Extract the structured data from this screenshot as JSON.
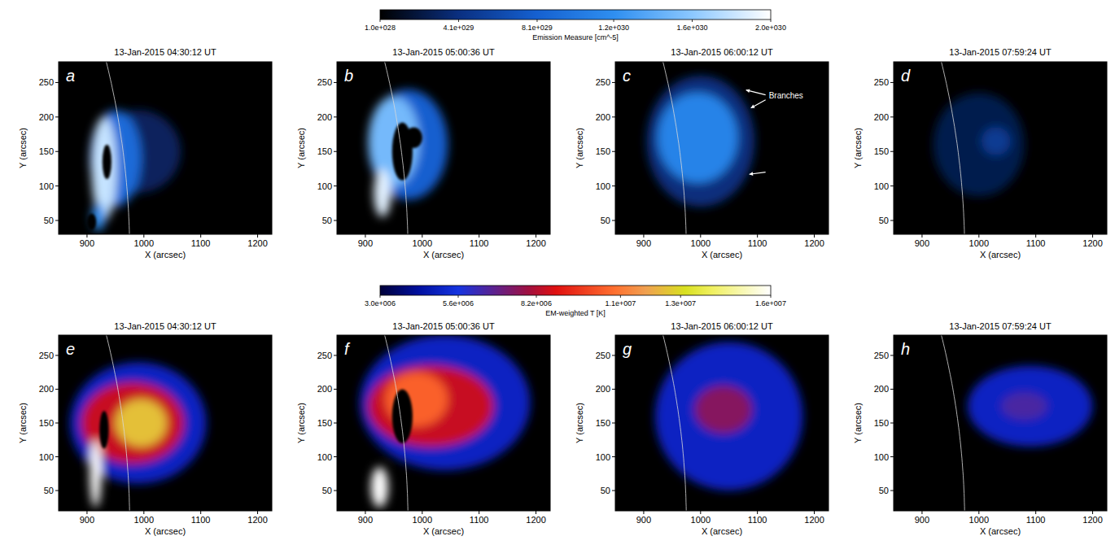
{
  "chart_data": [
    {
      "type": "heatmap",
      "title": "13-Jan-2015 04:30:12 UT",
      "panel": "a",
      "x_label": "X (arcsec)",
      "y_label": "Y (arcsec)",
      "xlim": [
        850,
        1225
      ],
      "ylim": [
        30,
        280
      ],
      "xticks": [
        900,
        1000,
        1100,
        1200
      ],
      "yticks": [
        50,
        100,
        150,
        200,
        250
      ],
      "limb_radius": 975,
      "features": [
        {
          "x": 990,
          "y": 150,
          "rx": 75,
          "ry": 60,
          "value": 300000000000000000000000000000
        },
        {
          "x": 950,
          "y": 140,
          "rx": 45,
          "ry": 70,
          "value": 900000000000000000000000000000
        },
        {
          "x": 930,
          "y": 125,
          "rx": 22,
          "ry": 75,
          "value": 1.8e+30
        },
        {
          "x": 920,
          "y": 55,
          "rx": 12,
          "ry": 20,
          "value": 1.2e+30
        }
      ],
      "masked": [
        {
          "x": 935,
          "y": 135,
          "rx": 8,
          "ry": 25
        },
        {
          "x": 908,
          "y": 48,
          "rx": 8,
          "ry": 12
        }
      ],
      "annotations": []
    },
    {
      "type": "heatmap",
      "title": "13-Jan-2015 05:00:36 UT",
      "panel": "b",
      "x_label": "X (arcsec)",
      "y_label": "Y (arcsec)",
      "xlim": [
        850,
        1225
      ],
      "ylim": [
        30,
        280
      ],
      "xticks": [
        900,
        1000,
        1100,
        1200
      ],
      "yticks": [
        50,
        100,
        150,
        200,
        250
      ],
      "limb_radius": 975,
      "features": [
        {
          "x": 975,
          "y": 160,
          "rx": 70,
          "ry": 80,
          "value": 800000000000000000000000000000
        },
        {
          "x": 950,
          "y": 165,
          "rx": 45,
          "ry": 65,
          "value": 1.5e+30
        },
        {
          "x": 930,
          "y": 90,
          "rx": 15,
          "ry": 35,
          "value": 1.9e+30
        }
      ],
      "masked": [
        {
          "x": 965,
          "y": 150,
          "rx": 18,
          "ry": 42
        },
        {
          "x": 985,
          "y": 170,
          "rx": 15,
          "ry": 15
        }
      ],
      "annotations": []
    },
    {
      "type": "heatmap",
      "title": "13-Jan-2015 06:00:12 UT",
      "panel": "c",
      "x_label": "X (arcsec)",
      "y_label": "Y (arcsec)",
      "xlim": [
        850,
        1225
      ],
      "ylim": [
        30,
        280
      ],
      "xticks": [
        900,
        1000,
        1100,
        1200
      ],
      "yticks": [
        50,
        100,
        150,
        200,
        250
      ],
      "limb_radius": 975,
      "features": [
        {
          "x": 1000,
          "y": 165,
          "rx": 95,
          "ry": 95,
          "value": 400000000000000000000000000000
        },
        {
          "x": 995,
          "y": 170,
          "rx": 70,
          "ry": 65,
          "value": 1.1e+30
        }
      ],
      "masked": [],
      "annotations": [
        {
          "text": "Branches",
          "x": 1120,
          "y": 232
        }
      ]
    },
    {
      "type": "heatmap",
      "title": "13-Jan-2015 07:59:24 UT",
      "panel": "d",
      "x_label": "X (arcsec)",
      "y_label": "Y (arcsec)",
      "xlim": [
        850,
        1225
      ],
      "ylim": [
        30,
        280
      ],
      "xticks": [
        900,
        1000,
        1100,
        1200
      ],
      "yticks": [
        50,
        100,
        150,
        200,
        250
      ],
      "limb_radius": 975,
      "features": [
        {
          "x": 1000,
          "y": 160,
          "rx": 80,
          "ry": 75,
          "value": 250000000000000000000000000000
        },
        {
          "x": 1030,
          "y": 165,
          "rx": 25,
          "ry": 20,
          "value": 500000000000000000000000000000
        }
      ],
      "masked": [],
      "annotations": []
    },
    {
      "type": "heatmap",
      "title": "13-Jan-2015 04:30:12 UT",
      "panel": "e",
      "x_label": "X (arcsec)",
      "y_label": "Y (arcsec)",
      "xlim": [
        850,
        1225
      ],
      "ylim": [
        20,
        280
      ],
      "xticks": [
        900,
        1000,
        1100,
        1200
      ],
      "yticks": [
        50,
        100,
        150,
        200,
        250
      ],
      "limb_radius": 975,
      "features": [
        {
          "x": 990,
          "y": 150,
          "rx": 120,
          "ry": 90,
          "value": 5000000
        },
        {
          "x": 980,
          "y": 150,
          "rx": 90,
          "ry": 60,
          "value": 8500000
        },
        {
          "x": 995,
          "y": 150,
          "rx": 45,
          "ry": 35,
          "value": 12500000
        },
        {
          "x": 915,
          "y": 75,
          "rx": 10,
          "ry": 50,
          "value": 16000000
        }
      ],
      "masked": [
        {
          "x": 930,
          "y": 140,
          "rx": 8,
          "ry": 28
        }
      ],
      "annotations": []
    },
    {
      "type": "heatmap",
      "title": "13-Jan-2015 05:00:36 UT",
      "panel": "f",
      "x_label": "X (arcsec)",
      "y_label": "Y (arcsec)",
      "xlim": [
        850,
        1225
      ],
      "ylim": [
        20,
        280
      ],
      "xticks": [
        900,
        1000,
        1100,
        1200
      ],
      "yticks": [
        50,
        100,
        150,
        200,
        250
      ],
      "limb_radius": 975,
      "features": [
        {
          "x": 1040,
          "y": 180,
          "rx": 150,
          "ry": 100,
          "value": 5000000
        },
        {
          "x": 1015,
          "y": 175,
          "rx": 110,
          "ry": 60,
          "value": 8500000
        },
        {
          "x": 990,
          "y": 185,
          "rx": 55,
          "ry": 40,
          "value": 10500000
        },
        {
          "x": 925,
          "y": 55,
          "rx": 15,
          "ry": 30,
          "value": 16000000
        }
      ],
      "masked": [
        {
          "x": 965,
          "y": 160,
          "rx": 18,
          "ry": 40
        }
      ],
      "annotations": []
    },
    {
      "type": "heatmap",
      "title": "13-Jan-2015 06:00:12 UT",
      "panel": "g",
      "x_label": "X (arcsec)",
      "y_label": "Y (arcsec)",
      "xlim": [
        850,
        1225
      ],
      "ylim": [
        20,
        280
      ],
      "xticks": [
        900,
        1000,
        1100,
        1200
      ],
      "yticks": [
        50,
        100,
        150,
        200,
        250
      ],
      "limb_radius": 975,
      "features": [
        {
          "x": 1050,
          "y": 160,
          "rx": 130,
          "ry": 110,
          "value": 5000000
        },
        {
          "x": 1040,
          "y": 170,
          "rx": 50,
          "ry": 35,
          "value": 7500000
        }
      ],
      "masked": [],
      "annotations": []
    },
    {
      "type": "heatmap",
      "title": "13-Jan-2015 07:59:24 UT",
      "panel": "h",
      "x_label": "X (arcsec)",
      "y_label": "Y (arcsec)",
      "xlim": [
        850,
        1225
      ],
      "ylim": [
        20,
        280
      ],
      "xticks": [
        900,
        1000,
        1100,
        1200
      ],
      "yticks": [
        50,
        100,
        150,
        200,
        250
      ],
      "limb_radius": 975,
      "features": [
        {
          "x": 1090,
          "y": 175,
          "rx": 110,
          "ry": 60,
          "value": 5000000
        },
        {
          "x": 1080,
          "y": 175,
          "rx": 40,
          "ry": 20,
          "value": 6500000
        }
      ],
      "masked": [],
      "annotations": []
    }
  ],
  "colorbars": [
    {
      "label": "Emission Measure [cm^-5]",
      "range": [
        10000000000000000000000000000,
        2e+30
      ],
      "ticks": [
        {
          "value": 10000000000000000000000000000,
          "label": "1.0e+028"
        },
        {
          "value": 410000000000000000000000000000,
          "label": "4.1e+029"
        },
        {
          "value": 810000000000000000000000000000,
          "label": "8.1e+029"
        },
        {
          "value": 1.2e+30,
          "label": "1.2e+030"
        },
        {
          "value": 1.6e+30,
          "label": "1.6e+030"
        },
        {
          "value": 2e+30,
          "label": "2.0e+030"
        }
      ]
    },
    {
      "label": "EM-weighted T [K]",
      "range": [
        3000000,
        16000000
      ],
      "ticks": [
        {
          "value": 3000000,
          "label": "3.0e+006"
        },
        {
          "value": 5600000,
          "label": "5.6e+006"
        },
        {
          "value": 8200000,
          "label": "8.2e+006"
        },
        {
          "value": 11000000,
          "label": "1.1e+007"
        },
        {
          "value": 13000000,
          "label": "1.3e+007"
        },
        {
          "value": 16000000,
          "label": "1.6e+007"
        }
      ]
    }
  ]
}
